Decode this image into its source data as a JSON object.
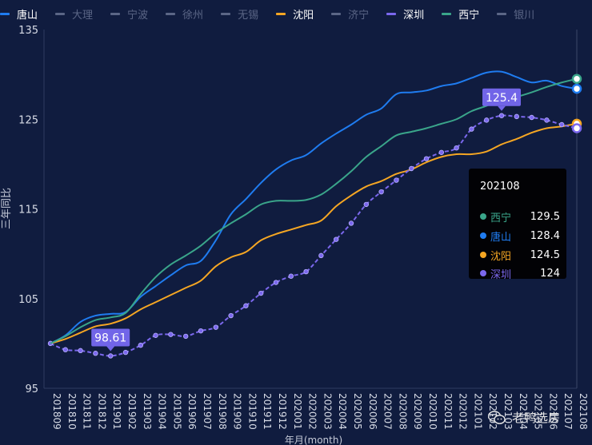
{
  "legend": [
    {
      "label": "唐山",
      "color": "#1f7cf0",
      "active": true
    },
    {
      "label": "大理",
      "color": "#5b6686",
      "active": false
    },
    {
      "label": "宁波",
      "color": "#5b6686",
      "active": false
    },
    {
      "label": "徐州",
      "color": "#5b6686",
      "active": false
    },
    {
      "label": "无锡",
      "color": "#5b6686",
      "active": false
    },
    {
      "label": "沈阳",
      "color": "#f5a623",
      "active": true
    },
    {
      "label": "济宁",
      "color": "#5b6686",
      "active": false
    },
    {
      "label": "深圳",
      "color": "#7b68ee",
      "active": true
    },
    {
      "label": "西宁",
      "color": "#3aa58a",
      "active": true
    },
    {
      "label": "银川",
      "color": "#5b6686",
      "active": false
    }
  ],
  "tooltip": {
    "header": "202108",
    "rows": [
      {
        "name": "西宁",
        "value": "129.5",
        "color": "#3aa58a"
      },
      {
        "name": "唐山",
        "value": "128.4",
        "color": "#1f7cf0"
      },
      {
        "name": "沈阳",
        "value": "124.5",
        "color": "#f5a623"
      },
      {
        "name": "深圳",
        "value": "124",
        "color": "#7b68ee"
      }
    ]
  },
  "watermark": {
    "text": "老鸭选房"
  },
  "chart_data": {
    "type": "line",
    "title": "",
    "xlabel": "年月(month)",
    "ylabel": "三年同比",
    "ylim": [
      95,
      135
    ],
    "yticks": [
      95,
      105,
      115,
      125,
      135
    ],
    "x": [
      "201809",
      "201810",
      "201811",
      "201812",
      "201901",
      "201902",
      "201903",
      "201904",
      "201905",
      "201906",
      "201907",
      "201908",
      "201909",
      "201910",
      "201911",
      "201912",
      "202001",
      "202002",
      "202003",
      "202004",
      "202005",
      "202006",
      "202007",
      "202008",
      "202009",
      "202010",
      "202011",
      "202012",
      "202101",
      "202102",
      "202103",
      "202104",
      "202105",
      "202106",
      "202107",
      "202108"
    ],
    "xtick_labels": [
      "201809",
      "201810",
      "201811",
      "201812",
      "201901",
      "201902",
      "201903",
      "201904",
      "201905",
      "201906",
      "201907",
      "201908",
      "201909",
      "201910",
      "201911",
      "201912",
      "202001",
      "202002",
      "202003",
      "202004",
      "202005",
      "202006",
      "202007",
      "202008",
      "202009",
      "202010",
      "202011",
      "202012",
      "202101",
      "202102",
      "202103",
      "202104",
      "202105",
      "202106",
      "202107",
      "202108"
    ],
    "series": [
      {
        "name": "唐山",
        "color": "#1f7cf0",
        "values": [
          100,
          100.9,
          102.4,
          103.1,
          103.3,
          103.5,
          105.2,
          106.4,
          107.6,
          108.7,
          109.2,
          111.5,
          114.4,
          116.1,
          117.9,
          119.4,
          120.4,
          121.0,
          122.3,
          123.4,
          124.4,
          125.5,
          126.2,
          127.8,
          128.0,
          128.2,
          128.7,
          129.0,
          129.6,
          130.2,
          130.3,
          129.7,
          129.1,
          129.3,
          128.7,
          128.4
        ]
      },
      {
        "name": "沈阳",
        "color": "#f5a623",
        "values": [
          100,
          100.5,
          101.2,
          101.9,
          102.2,
          102.8,
          103.8,
          104.6,
          105.4,
          106.2,
          107.0,
          108.6,
          109.6,
          110.2,
          111.5,
          112.2,
          112.7,
          113.2,
          113.7,
          115.3,
          116.5,
          117.5,
          118.1,
          118.9,
          119.4,
          120.2,
          120.8,
          121.1,
          121.1,
          121.4,
          122.2,
          122.8,
          123.5,
          124.0,
          124.2,
          124.5
        ]
      },
      {
        "name": "深圳",
        "color": "#7b68ee",
        "markers": true,
        "values": [
          100,
          99.3,
          99.2,
          98.9,
          98.61,
          99.0,
          99.8,
          100.9,
          101.0,
          100.8,
          101.4,
          101.8,
          103.1,
          104.2,
          105.6,
          106.8,
          107.5,
          108.0,
          109.8,
          111.6,
          113.4,
          115.5,
          116.9,
          118.2,
          119.5,
          120.6,
          121.3,
          121.8,
          123.9,
          124.9,
          125.4,
          125.3,
          125.2,
          124.9,
          124.4,
          124.0
        ]
      },
      {
        "name": "西宁",
        "color": "#3aa58a",
        "values": [
          100,
          100.8,
          101.8,
          102.6,
          102.9,
          103.4,
          105.5,
          107.4,
          108.8,
          109.8,
          110.9,
          112.3,
          113.4,
          114.4,
          115.5,
          115.9,
          115.9,
          116.0,
          116.6,
          117.8,
          119.2,
          120.8,
          122.0,
          123.2,
          123.6,
          124.0,
          124.5,
          125.0,
          125.9,
          126.5,
          127.2,
          127.5,
          128.0,
          128.6,
          129.1,
          129.5
        ]
      }
    ],
    "annotations": [
      {
        "series": "深圳",
        "x": "201901",
        "label": "98.61"
      },
      {
        "series": "深圳",
        "x": "202103",
        "label": "125.4"
      }
    ],
    "cursor_x": "202108",
    "grid": false,
    "legend_position": "top"
  }
}
